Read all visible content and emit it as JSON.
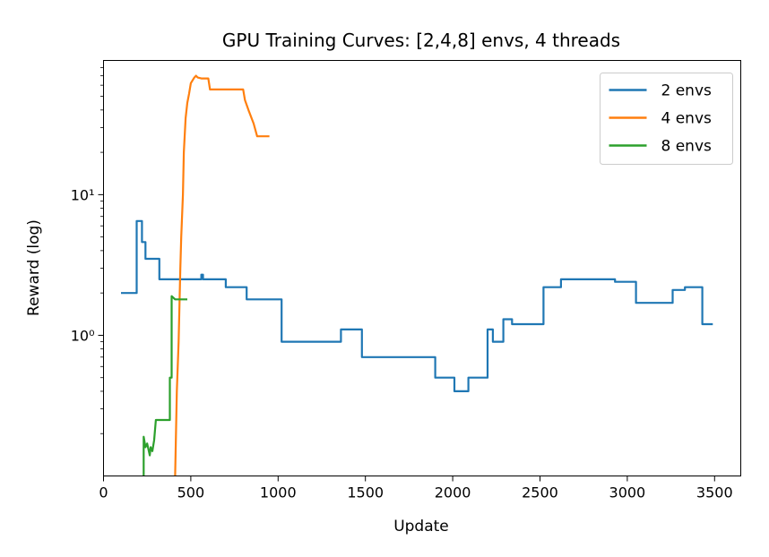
{
  "chart_data": {
    "type": "line",
    "title": "GPU Training Curves: [2,4,8] envs, 4 threads",
    "xlabel": "Update",
    "ylabel": "Reward (log)",
    "xlim": [
      0,
      3650
    ],
    "ylim": [
      0.1,
      90
    ],
    "yscale": "log",
    "xticks": [
      0,
      500,
      1000,
      1500,
      2000,
      2500,
      3000,
      3500
    ],
    "yticks": [
      {
        "value": 1,
        "label": "10⁰"
      },
      {
        "value": 10,
        "label": "10¹"
      }
    ],
    "grid": false,
    "legend_position": "top-right",
    "series": [
      {
        "name": "2 envs",
        "color": "#1f77b4",
        "x": [
          100,
          190,
          190,
          220,
          220,
          240,
          240,
          320,
          320,
          440,
          440,
          560,
          560,
          570,
          570,
          700,
          700,
          820,
          820,
          1020,
          1020,
          1360,
          1360,
          1480,
          1480,
          1900,
          1900,
          2010,
          2010,
          2090,
          2090,
          2200,
          2200,
          2230,
          2230,
          2290,
          2290,
          2340,
          2340,
          2520,
          2520,
          2620,
          2620,
          2930,
          2930,
          3050,
          3050,
          3260,
          3260,
          3330,
          3330,
          3430,
          3430,
          3490
        ],
        "y": [
          2.0,
          2.0,
          6.5,
          6.5,
          4.6,
          4.6,
          3.5,
          3.5,
          2.5,
          2.5,
          2.5,
          2.5,
          2.7,
          2.7,
          2.5,
          2.5,
          2.2,
          2.2,
          1.8,
          1.8,
          0.9,
          0.9,
          1.1,
          1.1,
          0.7,
          0.7,
          0.5,
          0.5,
          0.4,
          0.4,
          0.5,
          0.5,
          1.1,
          1.1,
          0.9,
          0.9,
          1.3,
          1.3,
          1.2,
          1.2,
          2.2,
          2.2,
          2.5,
          2.5,
          2.4,
          2.4,
          1.7,
          1.7,
          2.1,
          2.1,
          2.2,
          2.2,
          1.2,
          1.2
        ]
      },
      {
        "name": "4 envs",
        "color": "#ff7f0e",
        "x": [
          410,
          420,
          430,
          440,
          445,
          455,
          460,
          470,
          480,
          490,
          500,
          520,
          530,
          540,
          560,
          600,
          610,
          800,
          810,
          830,
          860,
          880,
          950
        ],
        "y": [
          0.1,
          0.4,
          0.9,
          3.0,
          5.0,
          10.0,
          20.0,
          35.0,
          45.0,
          52.0,
          62.0,
          68.0,
          70.0,
          68.0,
          67.0,
          67.0,
          56.0,
          56.0,
          47.0,
          40.0,
          32.0,
          26.0,
          26.0
        ]
      },
      {
        "name": "8 envs",
        "color": "#2ca02c",
        "x": [
          230,
          230,
          240,
          250,
          265,
          270,
          280,
          290,
          300,
          310,
          380,
          380,
          390,
          390,
          410,
          480
        ],
        "y": [
          0.1,
          0.19,
          0.16,
          0.17,
          0.14,
          0.16,
          0.15,
          0.18,
          0.25,
          0.25,
          0.25,
          0.5,
          0.5,
          1.9,
          1.8,
          1.8
        ]
      }
    ]
  }
}
